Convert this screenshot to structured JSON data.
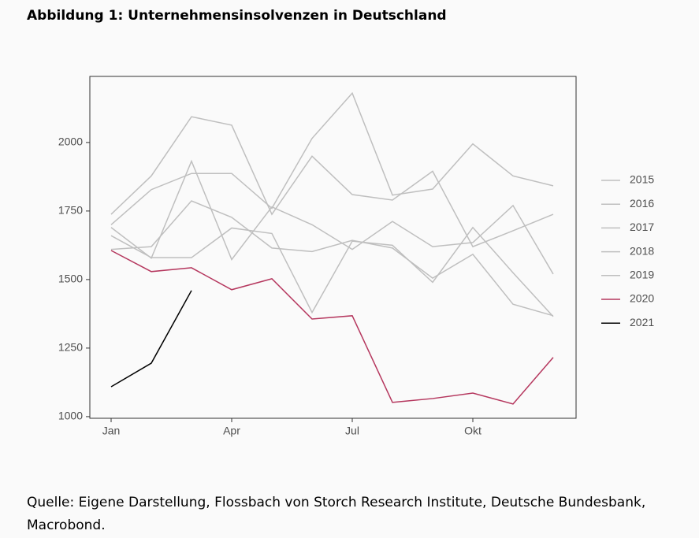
{
  "chart_data": {
    "type": "line",
    "title": "Abbildung 1: Unternehmensinsolvenzen in Deutschland",
    "source": "Quelle: Eigene Darstellung, Flossbach von Storch Research Institute, Deutsche Bundesbank, Macrobond.",
    "categories": [
      "Jan",
      null,
      null,
      "Apr",
      null,
      null,
      "Jul",
      null,
      null,
      "Okt",
      null,
      null
    ],
    "series": [
      {
        "name": "2015",
        "color": "#bfbfbf",
        "values": [
          1738,
          1878,
          2094,
          2063,
          1738,
          1950,
          1810,
          1790,
          1895,
          1620,
          1678,
          1738
        ]
      },
      {
        "name": "2016",
        "color": "#bfbfbf",
        "values": [
          1700,
          1828,
          1887,
          1887,
          1760,
          2015,
          2180,
          1808,
          1830,
          1995,
          1878,
          1842
        ]
      },
      {
        "name": "2017",
        "color": "#bfbfbf",
        "values": [
          1690,
          1578,
          1932,
          1573,
          1765,
          1700,
          1610,
          1712,
          1620,
          1635,
          1770,
          1520
        ]
      },
      {
        "name": "2018",
        "color": "#bfbfbf",
        "values": [
          1660,
          1580,
          1580,
          1688,
          1668,
          1380,
          1640,
          1625,
          1490,
          1690,
          1525,
          1365
        ]
      },
      {
        "name": "2019",
        "color": "#bfbfbf",
        "values": [
          1610,
          1620,
          1787,
          1727,
          1615,
          1602,
          1643,
          1615,
          1505,
          1592,
          1410,
          1368
        ]
      },
      {
        "name": "2020",
        "color": "#b5375e",
        "values": [
          1606,
          1529,
          1543,
          1463,
          1503,
          1356,
          1368,
          1052,
          1066,
          1086,
          1046,
          1216
        ]
      },
      {
        "name": "2021",
        "color": "#000000",
        "values": [
          1109,
          1195,
          1460,
          null,
          null,
          null,
          null,
          null,
          null,
          null,
          null,
          null
        ]
      }
    ],
    "ylim": [
      994,
      2241
    ],
    "yticks": [
      1000,
      1250,
      1500,
      1750,
      2000
    ]
  }
}
